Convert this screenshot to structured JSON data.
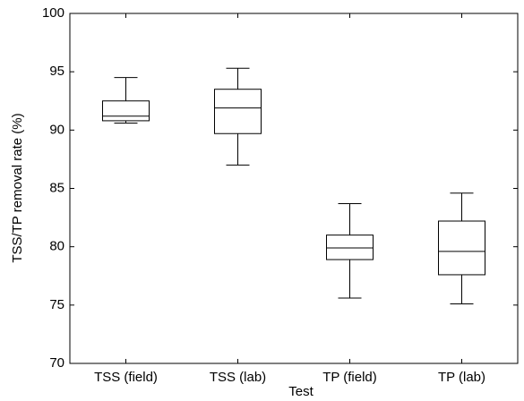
{
  "chart_data": {
    "type": "box",
    "x_label": "Test",
    "y_label": "TSS/TP removal rate (%)",
    "categories": [
      "TSS (field)",
      "TSS (lab)",
      "TP (field)",
      "TP (lab)"
    ],
    "stats": [
      {
        "min": 90.6,
        "q1": 90.8,
        "median": 91.2,
        "q3": 92.5,
        "max": 94.5
      },
      {
        "min": 87.0,
        "q1": 89.7,
        "median": 91.9,
        "q3": 93.5,
        "max": 95.3
      },
      {
        "min": 75.6,
        "q1": 78.9,
        "median": 79.9,
        "q3": 81.0,
        "max": 83.7
      },
      {
        "min": 75.1,
        "q1": 77.6,
        "median": 79.6,
        "q3": 82.2,
        "max": 84.6
      }
    ],
    "color": "#000000",
    "ylim": [
      70,
      100
    ],
    "yticks": [
      70,
      75,
      80,
      85,
      90,
      95,
      100
    ]
  }
}
